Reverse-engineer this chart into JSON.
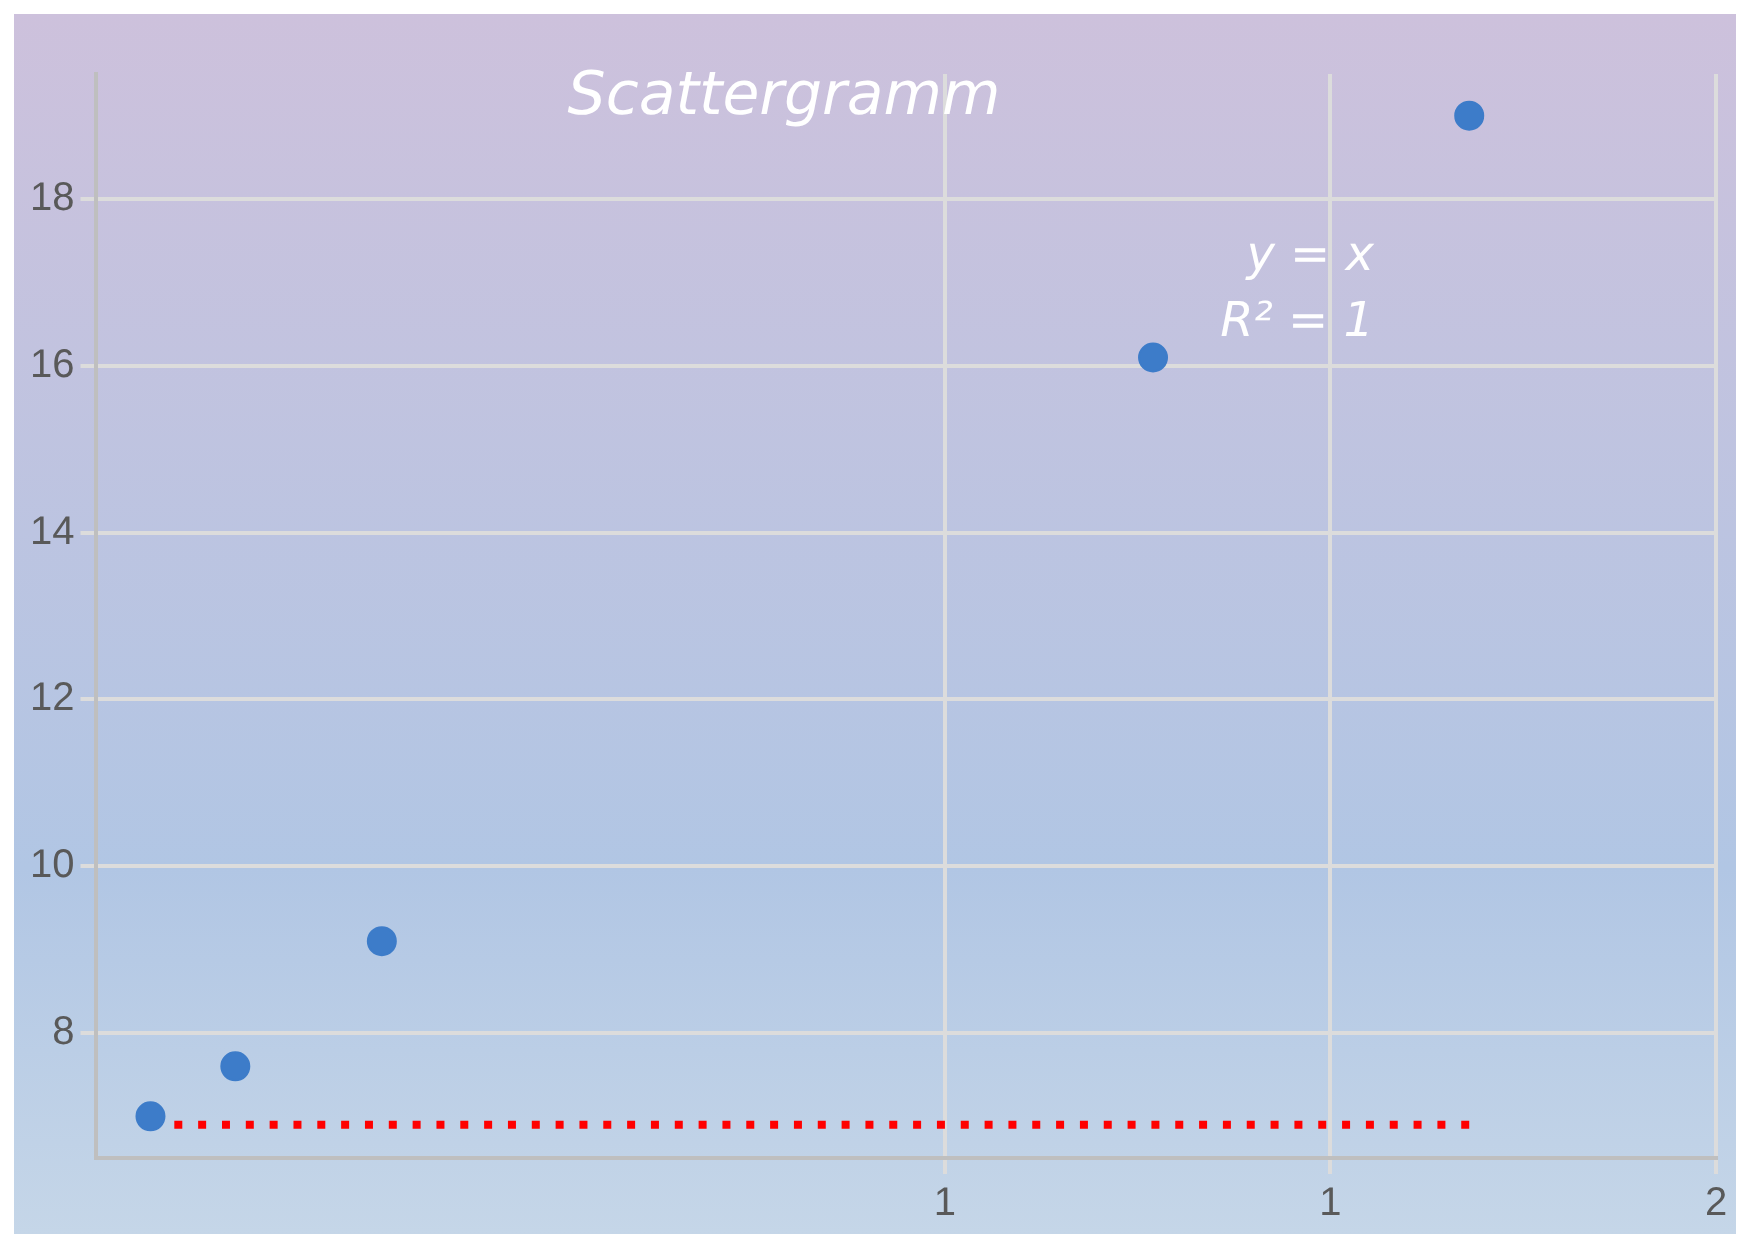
{
  "chart_data": {
    "type": "scatter",
    "title": "Scattergramm",
    "series": [
      {
        "color": "#3d7cc9",
        "x": [
          -0.03,
          0.08,
          0.27,
          1.27,
          1.68
        ],
        "values": [
          7.0,
          7.6,
          9.1,
          16.1,
          19.0
        ]
      },
      {
        "type": "line",
        "color": "#ff0000",
        "line_style": "dotted",
        "marker": "none",
        "x": [
          -0.03,
          1.68
        ],
        "values": [
          6.9,
          6.9
        ]
      }
    ],
    "marker": "circle",
    "xlim": [
      -0.1,
      2
    ],
    "xticks": [
      {
        "value": 1,
        "label": "1"
      },
      {
        "value": 1.5,
        "label": "1"
      },
      2
    ],
    "ylim": [
      6.5,
      19.5
    ],
    "yticks": [
      8,
      10,
      12,
      14,
      16,
      18
    ],
    "grid": true,
    "legend": false,
    "annotations": [
      "y = x",
      "R² = 1"
    ]
  }
}
